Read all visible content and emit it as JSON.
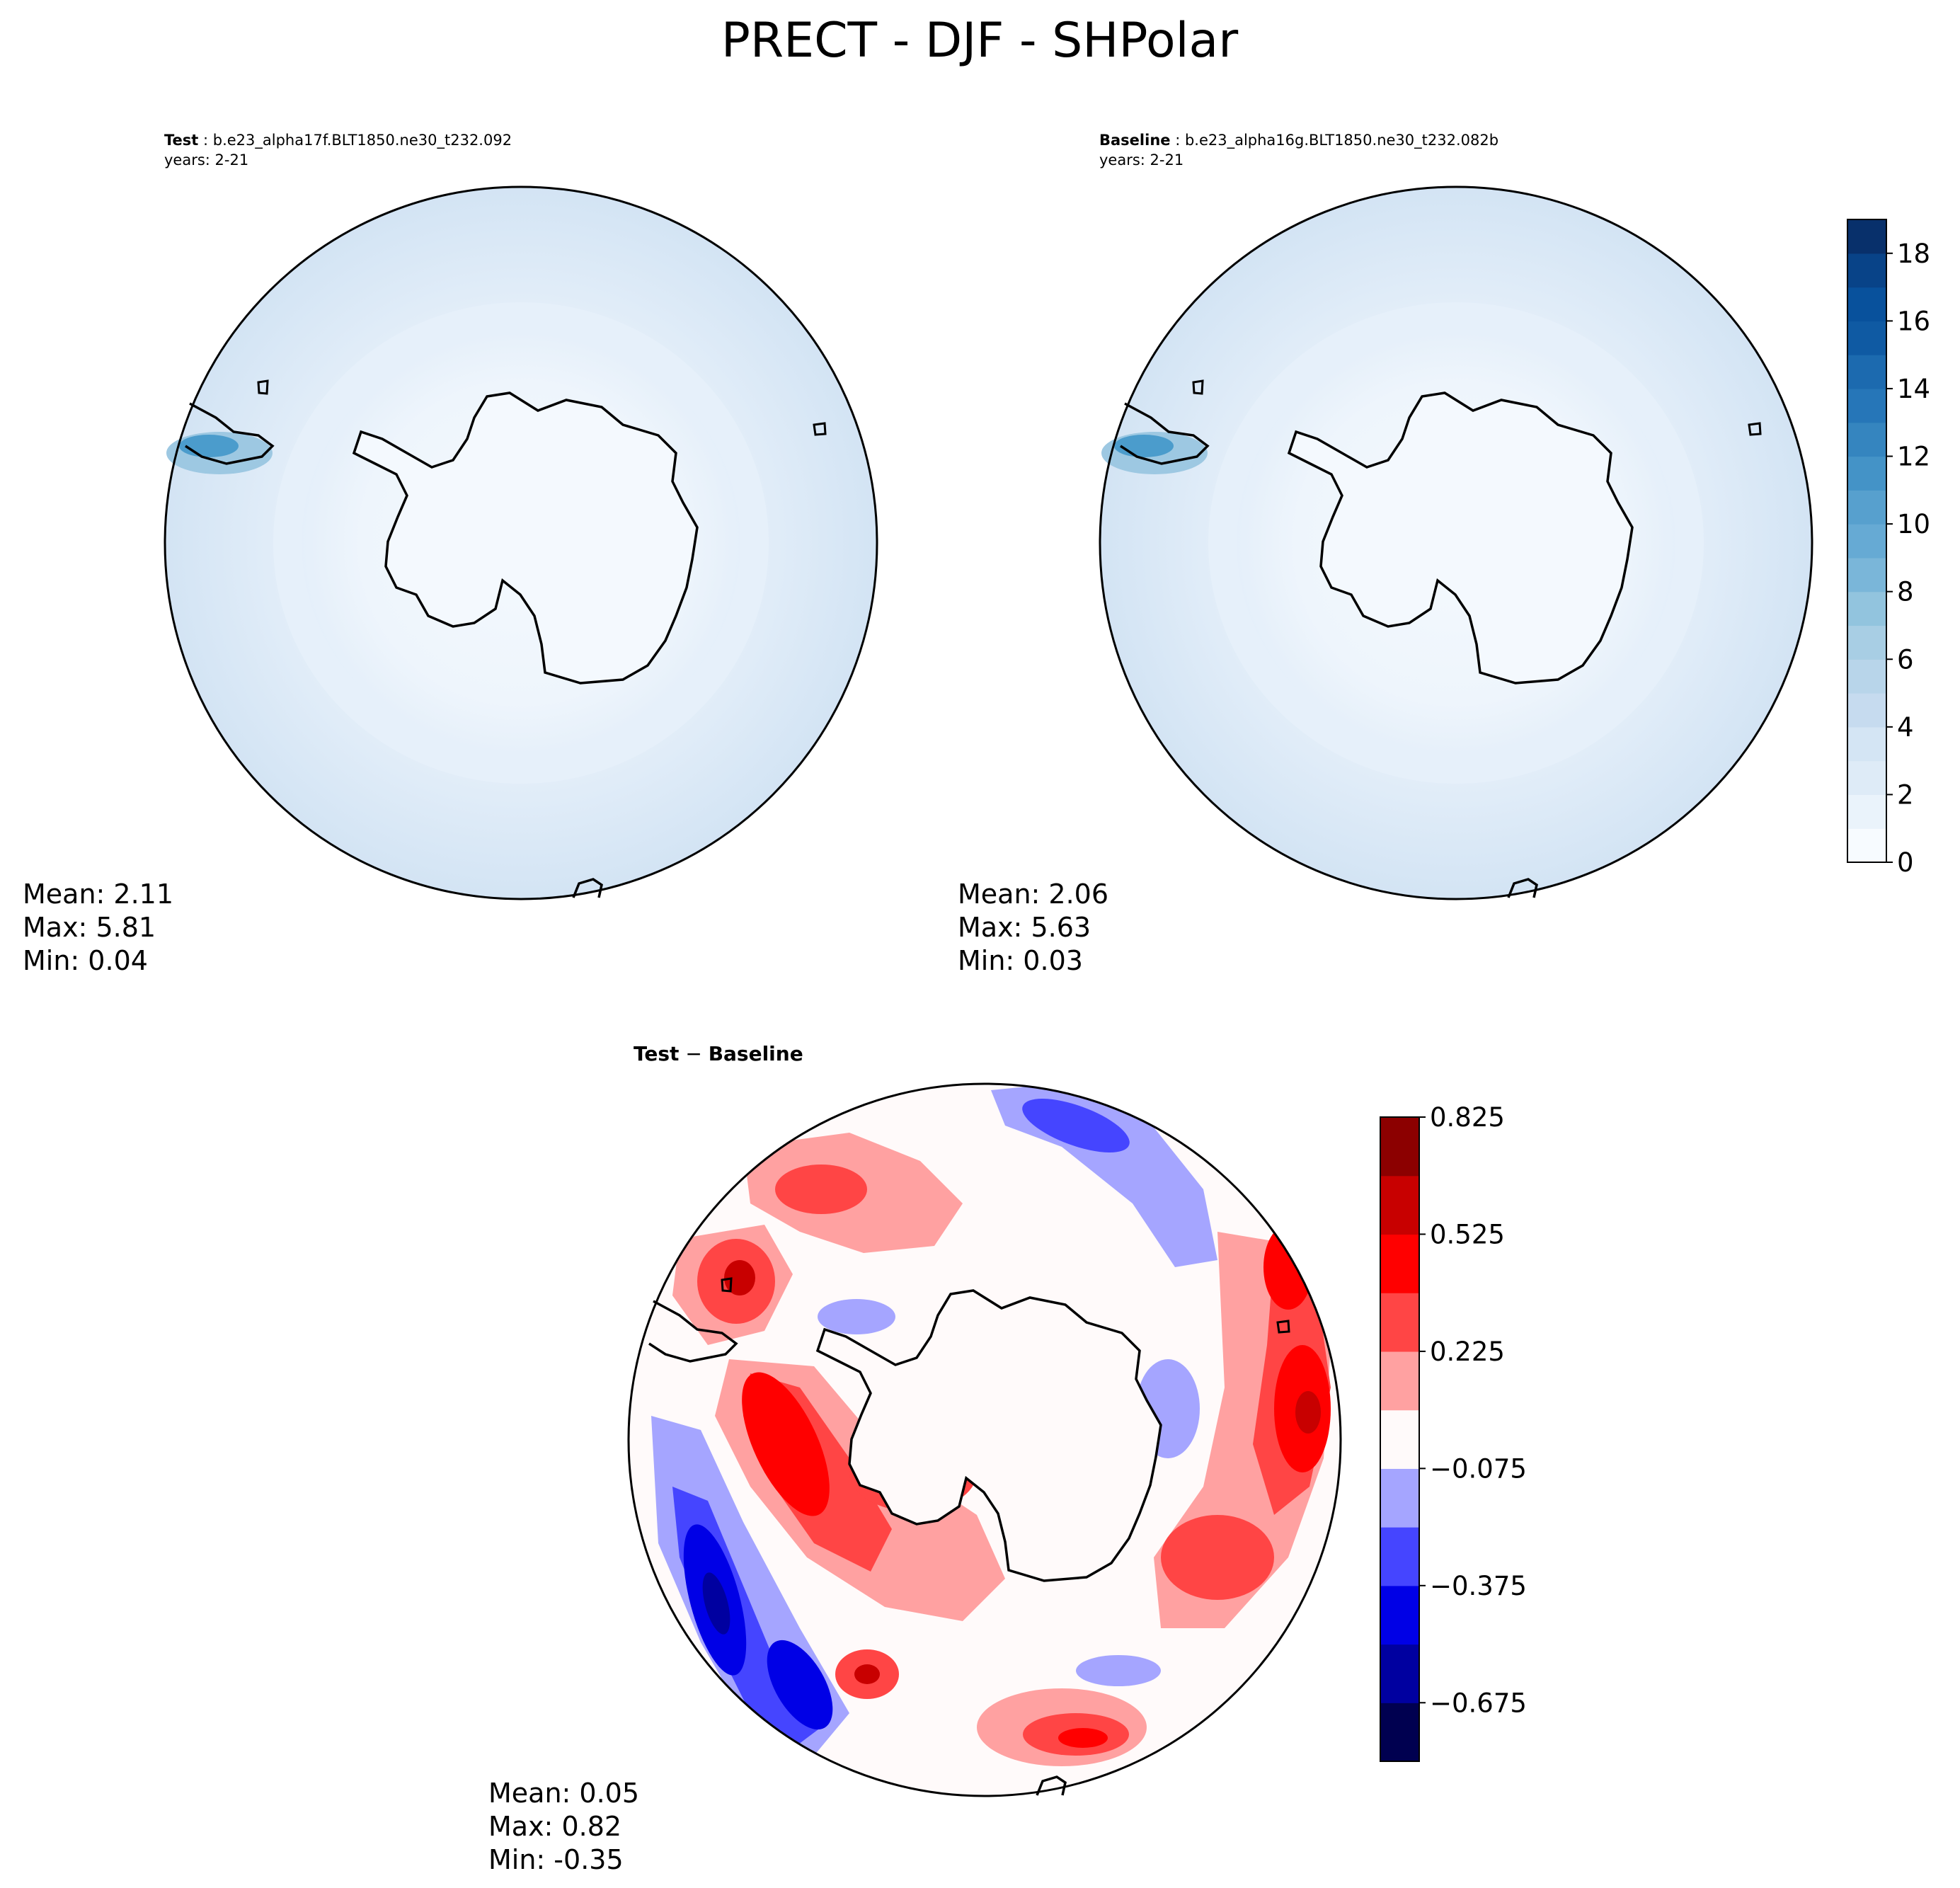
{
  "title": "PRECT - DJF - SHPolar",
  "chart_data": [
    {
      "type": "heatmap",
      "projection": "south-polar-stereographic",
      "panel": "test",
      "label_bold": "Test",
      "label_rest": " : b.e23_alpha17f.BLT1850.ne30_t232.092",
      "years": "years: 2-21",
      "stats": {
        "mean": "Mean:  2.11",
        "max": "Max:  5.81",
        "min": "Min:  0.04"
      },
      "value_range": [
        0.04,
        5.81
      ],
      "colormap": "Blues",
      "levels": [
        0,
        1,
        2,
        3,
        4,
        5,
        6,
        7,
        8,
        9,
        10,
        11,
        12,
        13,
        14,
        15,
        16,
        17,
        18,
        19
      ]
    },
    {
      "type": "heatmap",
      "projection": "south-polar-stereographic",
      "panel": "baseline",
      "label_bold": "Baseline",
      "label_rest": " : b.e23_alpha16g.BLT1850.ne30_t232.082b",
      "years": "years: 2-21",
      "stats": {
        "mean": "Mean:  2.06",
        "max": "Max:  5.63",
        "min": "Min:  0.03"
      },
      "value_range": [
        0.03,
        5.63
      ],
      "colormap": "Blues",
      "colorbar": {
        "range": [
          0,
          19
        ],
        "ticks": [
          "0",
          "2",
          "4",
          "6",
          "8",
          "10",
          "12",
          "14",
          "16",
          "18"
        ],
        "tick_values": [
          0,
          2,
          4,
          6,
          8,
          10,
          12,
          14,
          16,
          18
        ],
        "colors": [
          "#f7fbff",
          "#eaf3fb",
          "#deebf7",
          "#d4e5f4",
          "#c6dbef",
          "#b8d5ea",
          "#a8cee4",
          "#92c4de",
          "#7ab6d9",
          "#66aad4",
          "#57a0ce",
          "#4493c7",
          "#3585bf",
          "#2676b8",
          "#1c6aaf",
          "#0f5aa3",
          "#08519c",
          "#084388",
          "#08306b"
        ]
      }
    },
    {
      "type": "heatmap",
      "projection": "south-polar-stereographic",
      "panel": "difference",
      "label_bold": "Test",
      "label_op": " − ",
      "label_bold2": "Baseline",
      "stats": {
        "mean": "Mean:  0.05",
        "max": "Max:  0.82",
        "min": "Min: -0.35"
      },
      "value_range": [
        -0.35,
        0.82
      ],
      "colormap": "seismic",
      "colorbar": {
        "range": [
          -0.825,
          0.825
        ],
        "ticks": [
          "0.825",
          "0.525",
          "0.225",
          "−0.075",
          "−0.375",
          "−0.675"
        ],
        "tick_values": [
          0.825,
          0.525,
          0.225,
          -0.075,
          -0.375,
          -0.675
        ],
        "colors": [
          "#000050",
          "#0000a0",
          "#0000e6",
          "#4545ff",
          "#a5a5ff",
          "#fffafa",
          "#ffa1a1",
          "#ff4545",
          "#ff0000",
          "#c80000",
          "#8c0000"
        ]
      }
    }
  ]
}
